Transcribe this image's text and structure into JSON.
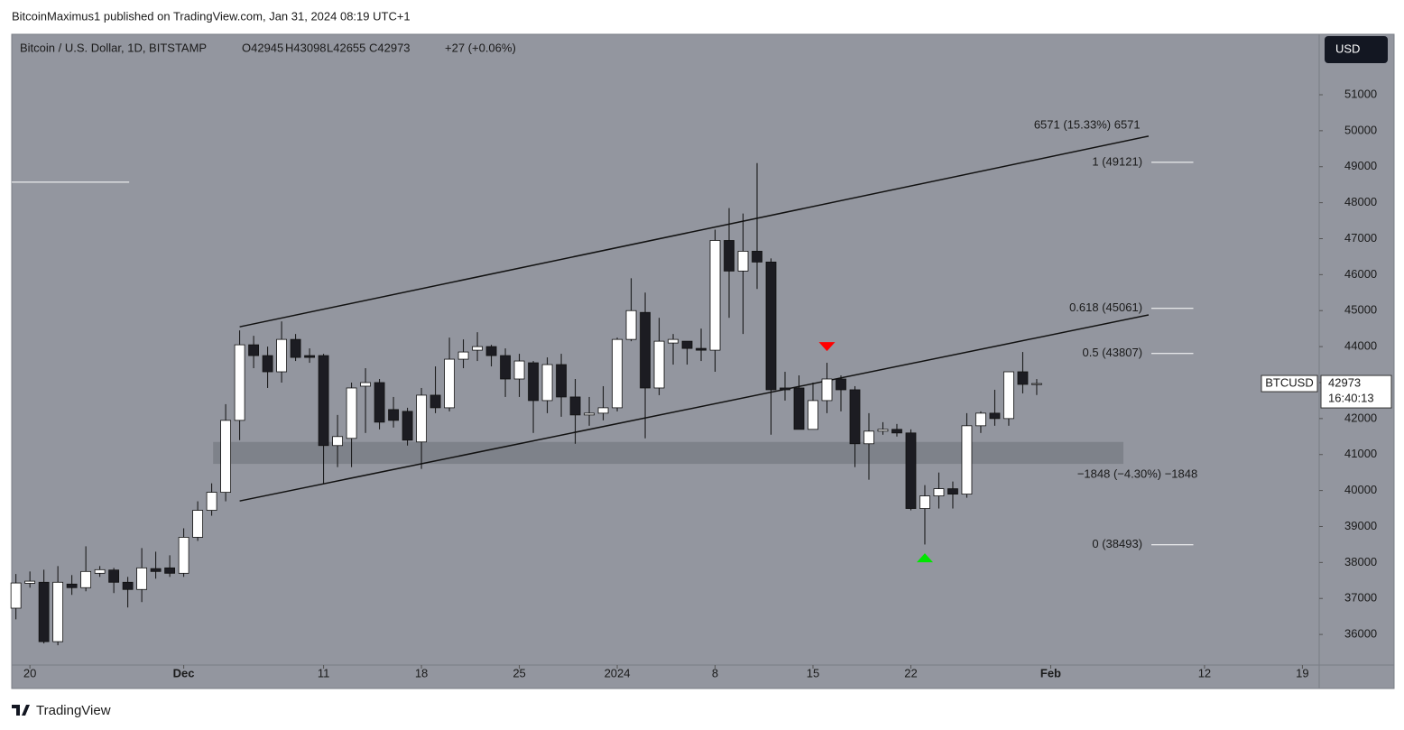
{
  "publisher": "BitcoinMaximus1 published on TradingView.com, Jan 31, 2024 08:19 UTC+1",
  "footer": "TradingView",
  "chart_data": {
    "type": "candlestick",
    "title": "Bitcoin / U.S. Dollar, 1D, BITSTAMP",
    "ohlc_labels": [
      "O42945",
      "H43098",
      "L42655",
      "C42973"
    ],
    "change": "+27 (+0.06%)",
    "currency": "USD",
    "x": [
      0,
      1,
      2,
      3,
      4,
      5,
      6,
      7,
      8,
      9,
      10,
      11,
      12,
      13,
      14,
      15,
      16,
      17,
      18,
      19,
      20,
      21,
      22,
      23,
      24,
      25,
      26,
      27,
      28,
      29,
      30,
      31,
      32,
      33,
      34,
      35,
      36,
      37,
      38,
      39,
      40,
      41,
      42,
      43,
      44,
      45,
      46,
      47,
      48,
      49,
      50,
      51,
      52,
      53,
      54,
      55,
      56,
      57,
      58,
      59,
      60,
      61,
      62,
      63,
      64,
      65,
      66,
      67,
      68,
      69,
      70,
      71,
      72,
      73
    ],
    "open": [
      36730,
      37420,
      37450,
      35800,
      37400,
      37300,
      37700,
      37790,
      37450,
      37250,
      37830,
      37850,
      37700,
      38700,
      39450,
      39950,
      41950,
      44050,
      43750,
      43300,
      44200,
      43750,
      43750,
      41250,
      41450,
      42900,
      43000,
      42250,
      42200,
      41350,
      42650,
      42300,
      43650,
      43900,
      44000,
      43750,
      43100,
      43550,
      42500,
      43500,
      42600,
      42100,
      42150,
      42300,
      44200,
      44950,
      42850,
      44100,
      44150,
      43950,
      43900,
      46950,
      46100,
      46650,
      46350,
      42850,
      42850,
      41700,
      42500,
      43100,
      42800,
      41300,
      41650,
      41700,
      41600,
      39500,
      39850,
      40050,
      39900,
      41800,
      42150,
      42000,
      43300,
      42945
    ],
    "high": [
      37680,
      37750,
      37800,
      37900,
      37650,
      38450,
      37900,
      37850,
      37600,
      38400,
      38300,
      38200,
      38950,
      39700,
      40200,
      42400,
      44450,
      44300,
      44000,
      44700,
      44350,
      43950,
      43800,
      42100,
      43000,
      43400,
      43100,
      42600,
      42300,
      42850,
      43450,
      44250,
      44200,
      44400,
      44050,
      43950,
      43800,
      43600,
      43700,
      43800,
      43100,
      42600,
      42900,
      44250,
      45900,
      45500,
      44800,
      44350,
      44150,
      44500,
      47250,
      47850,
      47700,
      49100,
      46450,
      43300,
      43200,
      43000,
      43550,
      43200,
      42900,
      42150,
      41900,
      41850,
      41700,
      40150,
      40500,
      40250,
      42150,
      42200,
      42800,
      43300,
      43850,
      43098
    ],
    "low": [
      36420,
      37300,
      35750,
      35700,
      37100,
      37200,
      37600,
      37150,
      36750,
      36900,
      37550,
      37600,
      37600,
      38600,
      39300,
      39700,
      41400,
      43400,
      42850,
      43000,
      43600,
      43550,
      40200,
      40650,
      40650,
      41600,
      41700,
      41750,
      41250,
      40600,
      42150,
      42200,
      43400,
      43600,
      43450,
      42600,
      42600,
      41600,
      42150,
      42050,
      41300,
      41800,
      41950,
      42200,
      44150,
      41450,
      42650,
      43500,
      43500,
      43600,
      43300,
      44800,
      44350,
      45600,
      41550,
      42500,
      41700,
      41700,
      42150,
      42200,
      40650,
      40300,
      41550,
      41500,
      39450,
      38500,
      39500,
      39500,
      39800,
      41600,
      41800,
      41800,
      42700,
      42655
    ],
    "close": [
      37430,
      37480,
      35800,
      37450,
      37300,
      37750,
      37800,
      37450,
      37250,
      37850,
      37750,
      37700,
      38700,
      39450,
      39950,
      41950,
      44050,
      43750,
      43300,
      44200,
      43700,
      43700,
      41250,
      41500,
      42850,
      43000,
      41900,
      41950,
      41400,
      42650,
      42300,
      43650,
      43850,
      44000,
      43750,
      43100,
      43600,
      42500,
      43500,
      42600,
      42100,
      42150,
      42300,
      44200,
      45000,
      42850,
      44150,
      44200,
      43950,
      43900,
      46950,
      46100,
      46650,
      46350,
      42800,
      42800,
      41700,
      42500,
      43100,
      42800,
      41300,
      41650,
      41700,
      41600,
      39500,
      39850,
      40050,
      39900,
      41800,
      42150,
      42000,
      43300,
      42950,
      42973
    ],
    "up_color": "#ffffff",
    "down_color": "#1c1c22",
    "wick_color": "#111111",
    "xlim": [
      -0.3,
      93.2
    ],
    "xticks": [
      {
        "value": 1,
        "label": "20"
      },
      {
        "value": 12,
        "label": "Dec"
      },
      {
        "value": 22,
        "label": "11"
      },
      {
        "value": 29,
        "label": "18"
      },
      {
        "value": 36,
        "label": "25"
      },
      {
        "value": 43,
        "label": "2024"
      },
      {
        "value": 50,
        "label": "8"
      },
      {
        "value": 57,
        "label": "15"
      },
      {
        "value": 64,
        "label": "22"
      },
      {
        "value": 74,
        "label": "Feb"
      },
      {
        "value": 85,
        "label": "12"
      },
      {
        "value": 92,
        "label": "19"
      }
    ],
    "ylim": [
      35150,
      52680
    ],
    "yticks": [
      36000,
      37000,
      38000,
      39000,
      40000,
      41000,
      42000,
      43000,
      44000,
      45000,
      46000,
      47000,
      48000,
      49000,
      50000,
      51000
    ],
    "grid": false,
    "last_price": {
      "symbol": "BTCUSD",
      "value": 42973,
      "countdown": "16:40:13"
    },
    "channel": [
      {
        "x": [
          16,
          81
        ],
        "y": [
          44550,
          49850
        ]
      },
      {
        "x": [
          16,
          81
        ],
        "y": [
          39710,
          44880
        ]
      }
    ],
    "zone": {
      "x": [
        14.1,
        79.2
      ],
      "y": [
        40740,
        41350
      ]
    },
    "hline": {
      "x": [
        -0.3,
        8.1
      ],
      "y": 48570
    },
    "fib_x": [
      81.2,
      84.2
    ],
    "fib_levels": [
      {
        "label": "1 (49121)",
        "value": 49121
      },
      {
        "label": "0.618 (45061)",
        "value": 45061
      },
      {
        "label": "0.5 (43807)",
        "value": 43807
      },
      {
        "label": "0 (38493)",
        "value": 38493
      }
    ],
    "annotations": [
      {
        "text": "6571 (15.33%) 6571",
        "x": 76.6,
        "y": 50150
      },
      {
        "text": "−1848 (−4.30%) −1848",
        "x": 80.2,
        "y": 40440
      }
    ],
    "markers": [
      {
        "shape": "triangle-down",
        "color": "#ff0000",
        "x": 58,
        "y": 44000
      },
      {
        "shape": "triangle-up",
        "color": "#00e600",
        "x": 65,
        "y": 38130
      }
    ]
  }
}
